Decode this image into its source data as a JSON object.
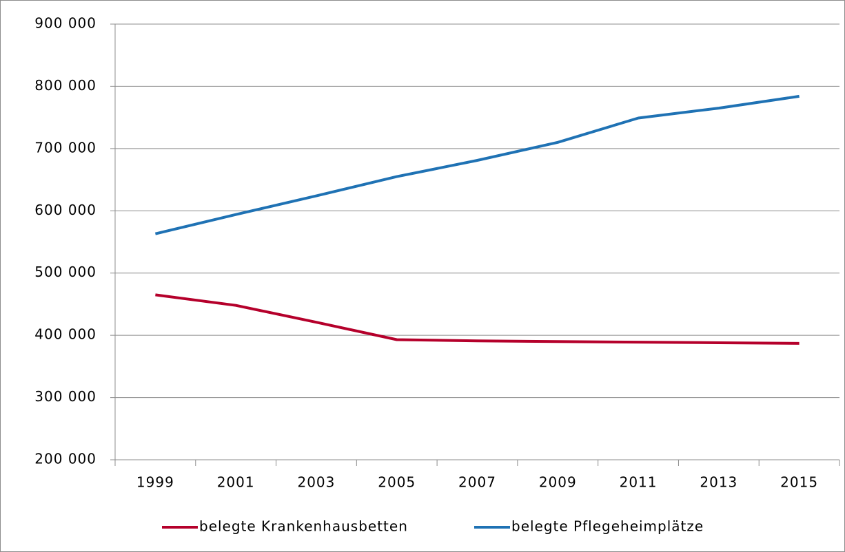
{
  "chart_data": {
    "type": "line",
    "categories": [
      "1999",
      "2001",
      "2003",
      "2005",
      "2007",
      "2009",
      "2011",
      "2013",
      "2015"
    ],
    "series": [
      {
        "name": "belegte Krankenhausbetten",
        "color": "#b5002b",
        "values": [
          465000,
          448000,
          421000,
          393000,
          391000,
          390000,
          389000,
          388000,
          387000
        ]
      },
      {
        "name": "belegte Pflegeheimplätze",
        "color": "#1f72b4",
        "values": [
          563000,
          594000,
          624000,
          655000,
          681000,
          710000,
          749000,
          765000,
          784000
        ]
      }
    ],
    "ylim": [
      200000,
      900000
    ],
    "yticks": [
      {
        "value": 200000,
        "label": "200 000"
      },
      {
        "value": 300000,
        "label": "300 000"
      },
      {
        "value": 400000,
        "label": "400 000"
      },
      {
        "value": 500000,
        "label": "500 000"
      },
      {
        "value": 600000,
        "label": "600 000"
      },
      {
        "value": 700000,
        "label": "700 000"
      },
      {
        "value": 800000,
        "label": "800 000"
      },
      {
        "value": 900000,
        "label": "900 000"
      }
    ],
    "grid": true,
    "legend": "bottom"
  }
}
